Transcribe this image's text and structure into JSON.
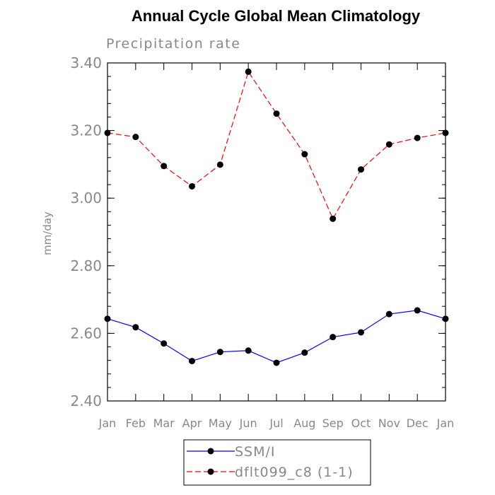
{
  "chart_data": {
    "type": "line",
    "title": "Annual Cycle Global Mean Climatology",
    "subtitle": "Precipitation rate",
    "xlabel": "",
    "ylabel": "mm/day",
    "categories": [
      "Jan",
      "Feb",
      "Mar",
      "Apr",
      "May",
      "Jun",
      "Jul",
      "Aug",
      "Sep",
      "Oct",
      "Nov",
      "Dec",
      "Jan"
    ],
    "ylim": [
      2.4,
      3.4
    ],
    "yticks": [
      "2.40",
      "2.60",
      "2.80",
      "3.00",
      "3.20",
      "3.40"
    ],
    "ytick_values": [
      2.4,
      2.6,
      2.8,
      3.0,
      3.2,
      3.4
    ],
    "legend_position": "bottom-center",
    "series": [
      {
        "name": "SSM/I",
        "color": "#0000ff",
        "dash": "solid",
        "values": [
          2.643,
          2.618,
          2.57,
          2.518,
          2.545,
          2.549,
          2.513,
          2.543,
          2.589,
          2.603,
          2.657,
          2.668,
          2.643
        ]
      },
      {
        "name": "dflt099_c8 (1-1)",
        "color": "#ff0000",
        "dash": "dashed",
        "values": [
          3.193,
          3.181,
          3.095,
          3.035,
          3.099,
          3.374,
          3.25,
          3.13,
          2.939,
          3.085,
          3.159,
          3.178,
          3.193
        ]
      }
    ]
  }
}
